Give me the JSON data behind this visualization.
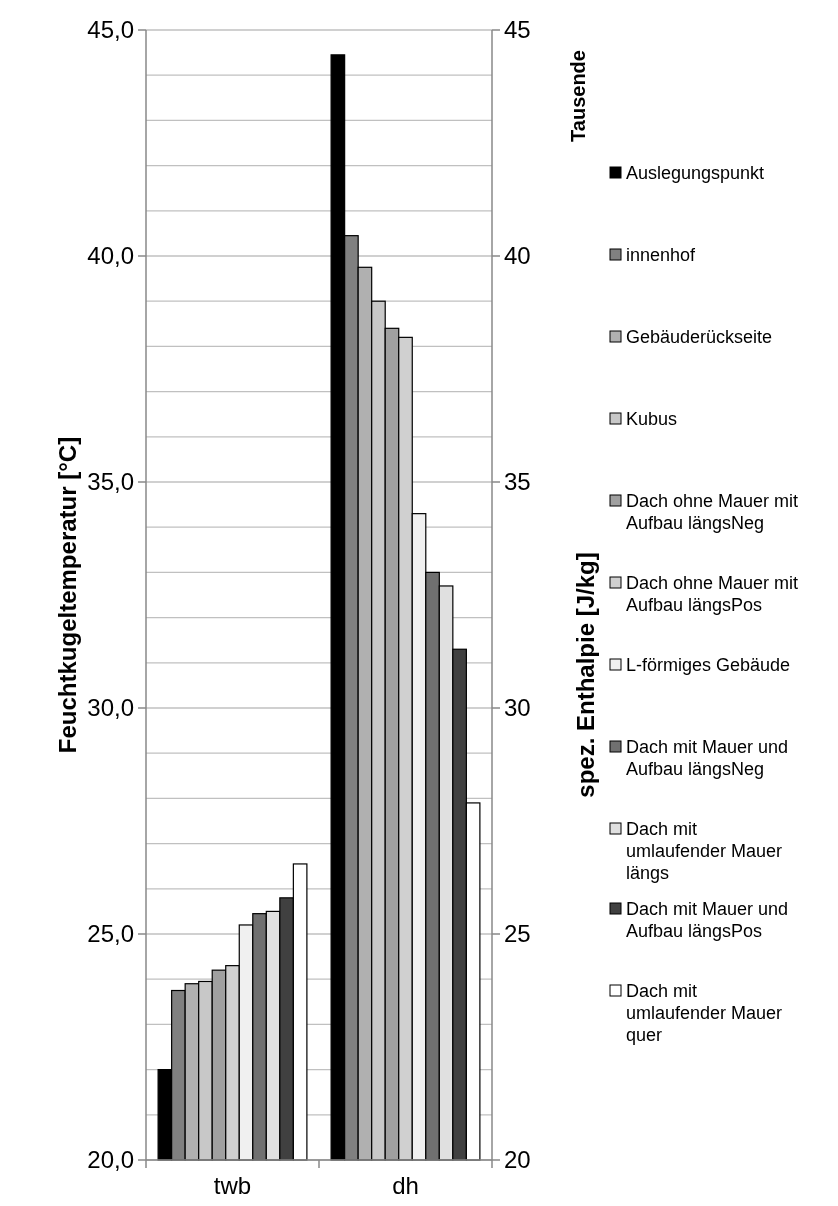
{
  "chart_data": {
    "type": "bar",
    "categories": [
      "twb",
      "dh"
    ],
    "ylabel": "Feuchtkugeltemperatur [°C]",
    "y2label": "spez. Enthalpie [J/kg]",
    "annotations": [
      "Tausende"
    ],
    "ylim": [
      20,
      45
    ],
    "yticks": [
      {
        "value": 20,
        "label": "20,0"
      },
      {
        "value": 21,
        "label": null
      },
      {
        "value": 22,
        "label": null
      },
      {
        "value": 23,
        "label": null
      },
      {
        "value": 24,
        "label": null
      },
      {
        "value": 25,
        "label": "25,0"
      },
      {
        "value": 26,
        "label": null
      },
      {
        "value": 27,
        "label": null
      },
      {
        "value": 28,
        "label": null
      },
      {
        "value": 29,
        "label": null
      },
      {
        "value": 30,
        "label": "30,0"
      },
      {
        "value": 31,
        "label": null
      },
      {
        "value": 32,
        "label": null
      },
      {
        "value": 33,
        "label": null
      },
      {
        "value": 34,
        "label": null
      },
      {
        "value": 35,
        "label": "35,0"
      },
      {
        "value": 36,
        "label": null
      },
      {
        "value": 37,
        "label": null
      },
      {
        "value": 38,
        "label": null
      },
      {
        "value": 39,
        "label": null
      },
      {
        "value": 40,
        "label": "40,0"
      },
      {
        "value": 41,
        "label": null
      },
      {
        "value": 42,
        "label": null
      },
      {
        "value": 43,
        "label": null
      },
      {
        "value": 44,
        "label": null
      },
      {
        "value": 45,
        "label": "45,0"
      }
    ],
    "y2lim": [
      20,
      45
    ],
    "y2ticks": [
      20,
      25,
      30,
      35,
      40,
      45
    ],
    "grid": "y",
    "legend": "right",
    "series": [
      {
        "name": "Auslegungspunkt",
        "color": "#000000",
        "values": [
          22.0,
          44.45
        ]
      },
      {
        "name": "innenhof",
        "color": "#808080",
        "values": [
          23.75,
          40.45
        ]
      },
      {
        "name": "Gebäuderückseite",
        "color": "#b0b0b0",
        "values": [
          23.9,
          39.75
        ]
      },
      {
        "name": "Kubus",
        "color": "#c8c8c8",
        "values": [
          23.95,
          39.0
        ]
      },
      {
        "name": "Dach ohne Mauer mit Aufbau längsNeg",
        "color": "#a0a0a0",
        "values": [
          24.2,
          38.4
        ]
      },
      {
        "name": "Dach ohne Mauer mit Aufbau längsPos",
        "color": "#d0d0d0",
        "values": [
          24.3,
          38.2
        ]
      },
      {
        "name": "L-förmiges Gebäude",
        "color": "#f0f0f0",
        "values": [
          25.2,
          34.3
        ]
      },
      {
        "name": "Dach mit Mauer und Aufbau längsNeg",
        "color": "#707070",
        "values": [
          25.45,
          33.0
        ]
      },
      {
        "name": "Dach mit umlaufender Mauer längs",
        "color": "#e0e0e0",
        "values": [
          25.5,
          32.7
        ]
      },
      {
        "name": "Dach mit Mauer und Aufbau längsPos",
        "color": "#404040",
        "values": [
          25.8,
          31.3
        ]
      },
      {
        "name": "Dach mit umlaufender Mauer quer",
        "color": "#ffffff",
        "values": [
          26.55,
          27.9
        ]
      }
    ]
  }
}
